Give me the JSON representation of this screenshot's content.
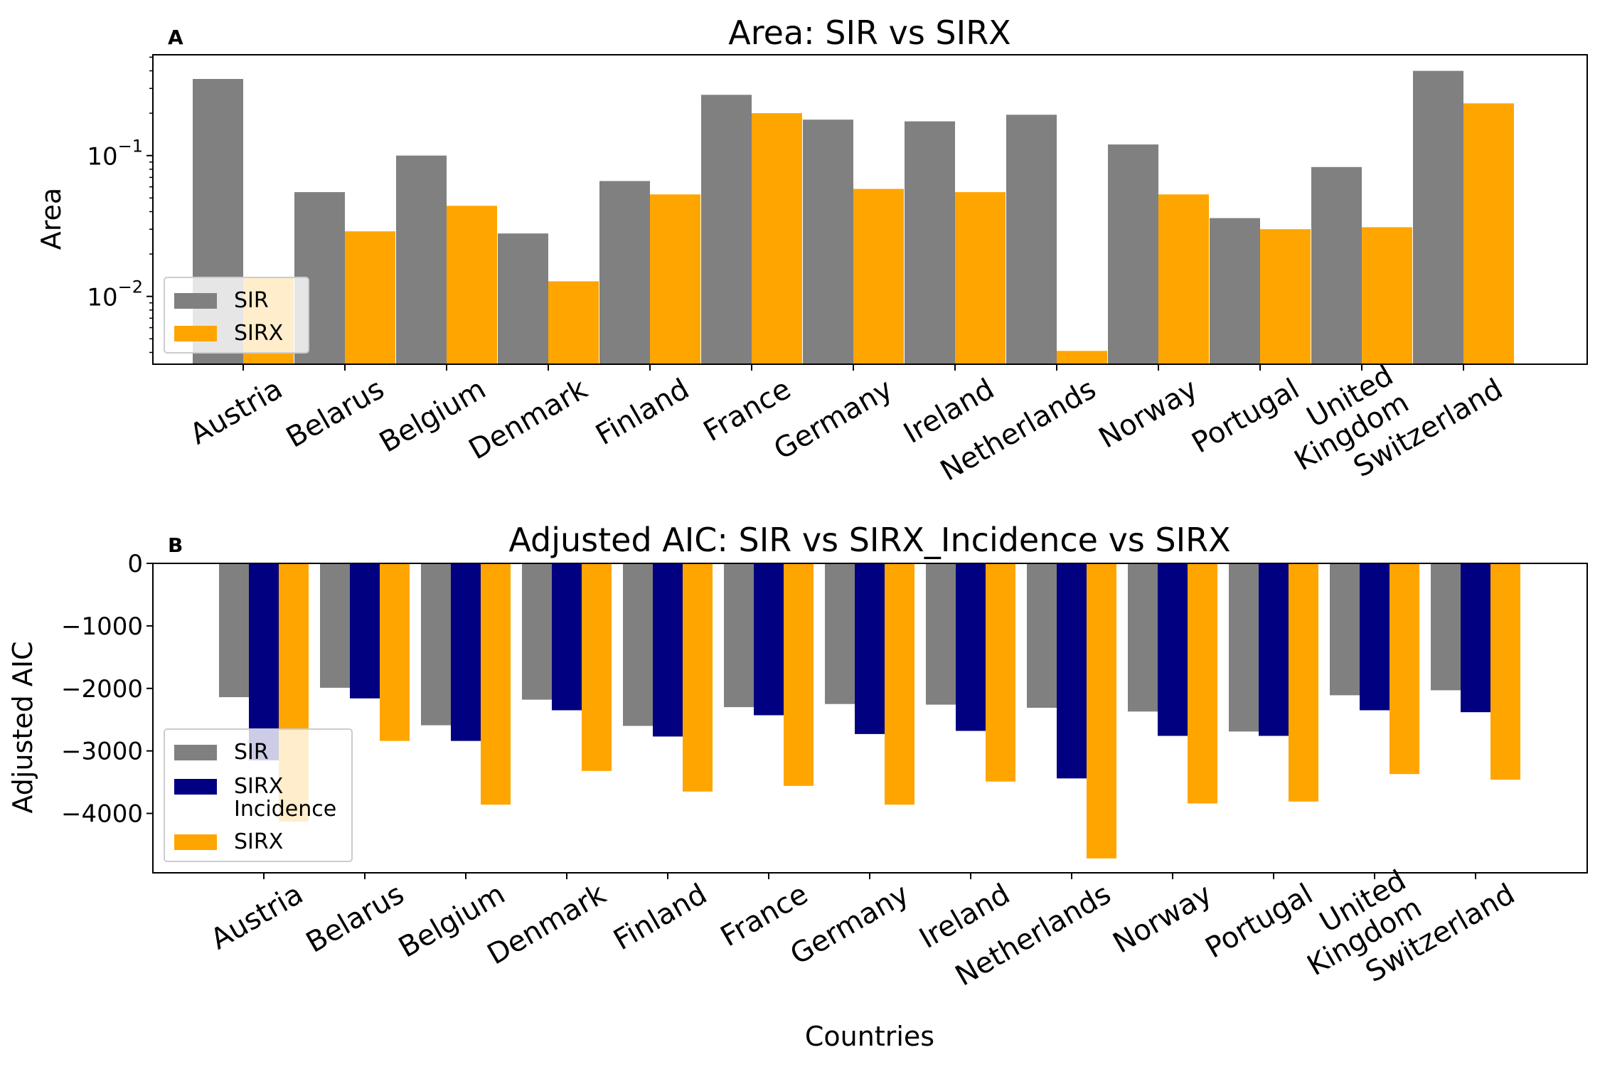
{
  "chart_data": [
    {
      "type": "bar",
      "panel_label": "A",
      "title": "Area: SIR vs SIRX",
      "xlabel": "",
      "ylabel": "Area",
      "yscale": "log",
      "ylim": [
        0.0033,
        0.52
      ],
      "yticks": [
        0.01,
        0.1
      ],
      "ytick_labels": [
        {
          "base": "10",
          "exp": "−2"
        },
        {
          "base": "10",
          "exp": "−1"
        }
      ],
      "categories": [
        "Austria",
        "Belarus",
        "Belgium",
        "Denmark",
        "Finland",
        "France",
        "Germany",
        "Ireland",
        "Netherlands",
        "Norway",
        "Portugal",
        "United\nKingdom",
        "Switzerland"
      ],
      "series": [
        {
          "name": "SIR",
          "color": "#808080",
          "values": [
            0.35,
            0.055,
            0.1,
            0.028,
            0.066,
            0.27,
            0.18,
            0.175,
            0.195,
            0.12,
            0.036,
            0.083,
            0.4
          ]
        },
        {
          "name": "SIRX",
          "color": "#FFA500",
          "values": [
            0.0135,
            0.029,
            0.044,
            0.0128,
            0.053,
            0.2,
            0.058,
            0.055,
            0.0041,
            0.053,
            0.03,
            0.031,
            0.235
          ]
        }
      ],
      "legend": {
        "placement": "lower-left",
        "entries": [
          "SIR",
          "SIRX"
        ]
      },
      "grid": false
    },
    {
      "type": "bar",
      "panel_label": "B",
      "title": "Adjusted AIC: SIR vs SIRX_Incidence vs SIRX",
      "xlabel": "Countries",
      "ylabel": "Adjusted AIC",
      "yscale": "linear",
      "ylim": [
        -4950,
        0
      ],
      "yticks": [
        0,
        -1000,
        -2000,
        -3000,
        -4000
      ],
      "ytick_labels": [
        "0",
        "−1000",
        "−2000",
        "−3000",
        "−4000"
      ],
      "categories": [
        "Austria",
        "Belarus",
        "Belgium",
        "Denmark",
        "Finland",
        "France",
        "Germany",
        "Ireland",
        "Netherlands",
        "Norway",
        "Portugal",
        "United\nKingdom",
        "Switzerland"
      ],
      "series": [
        {
          "name": "SIR",
          "color": "#808080",
          "values": [
            -2140,
            -1990,
            -2590,
            -2180,
            -2600,
            -2300,
            -2250,
            -2260,
            -2310,
            -2370,
            -2690,
            -2110,
            -2030
          ]
        },
        {
          "name": "SIRX\nIncidence",
          "color": "#000080",
          "values": [
            -3150,
            -2160,
            -2840,
            -2350,
            -2770,
            -2430,
            -2730,
            -2680,
            -3440,
            -2760,
            -2760,
            -2350,
            -2380
          ]
        },
        {
          "name": "SIRX",
          "color": "#FFA500",
          "values": [
            -4130,
            -2840,
            -3860,
            -3320,
            -3650,
            -3560,
            -3860,
            -3490,
            -4720,
            -3840,
            -3810,
            -3370,
            -3460
          ]
        }
      ],
      "legend": {
        "placement": "lower-left",
        "entries": [
          "SIR",
          "SIRX\nIncidence",
          "SIRX"
        ]
      },
      "grid": false
    }
  ]
}
